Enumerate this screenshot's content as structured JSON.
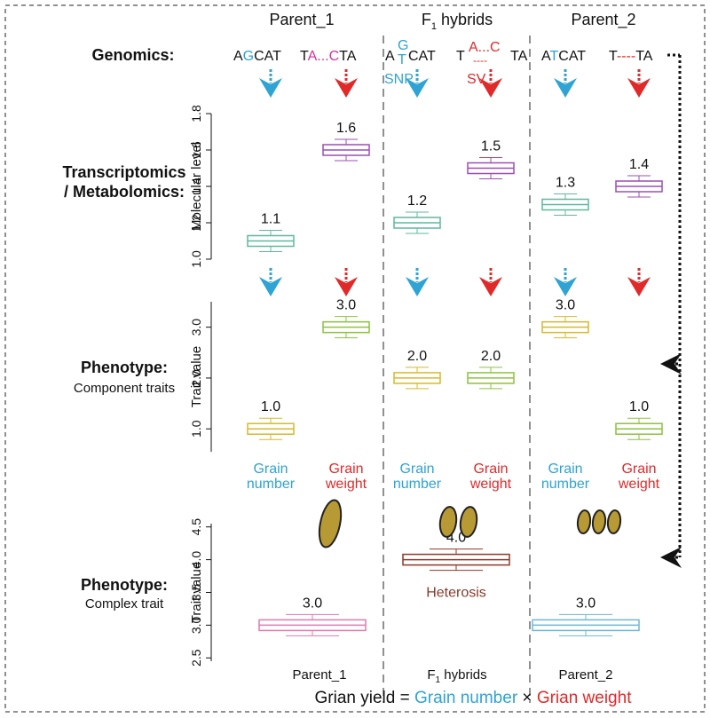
{
  "columns": {
    "p1": "Parent_1",
    "f1": {
      "main": "F",
      "sub": "1",
      "rest": " hybrids"
    },
    "p2": "Parent_2"
  },
  "genomics": {
    "label": "Genomics:",
    "p1_a": [
      "A",
      "G",
      "CAT"
    ],
    "p1_b": [
      "T",
      "A...C",
      "TA"
    ],
    "f1_a": {
      "base": "A",
      "top": "G",
      "bottom": "T",
      "rest": "CAT",
      "note": "SNP"
    },
    "f1_b": {
      "base": "T",
      "top": "A...C",
      "bottom": "----",
      "rest": "TA",
      "note": "SV"
    },
    "p2_a": [
      "A",
      "T",
      "CAT"
    ],
    "p2_b": [
      "T",
      "----",
      "TA"
    ]
  },
  "molecular": {
    "label": [
      "Transcriptomics",
      "/ Metabolomics:"
    ],
    "axis_label": "Molecular level",
    "ylim": [
      1.0,
      1.8
    ],
    "yticks": [
      {
        "value": 1.0,
        "label": "1.0"
      },
      1.2,
      1.4,
      1.6,
      1.8
    ],
    "values": [
      1.1,
      1.6,
      1.2,
      1.5,
      1.3,
      1.4
    ],
    "colors": [
      "#5fb89e",
      "#9b4fb5",
      "#5fb89e",
      "#9b4fb5",
      "#5fb89e",
      "#9b4fb5"
    ]
  },
  "component": {
    "label": [
      "Phenotype:",
      "Component traits"
    ],
    "axis_label": "Trait value",
    "ylim": [
      0.55,
      3.5
    ],
    "yticks": [
      {
        "value": 1.0,
        "label": "1.0"
      },
      {
        "value": 2.0,
        "label": "2.0"
      },
      {
        "value": 3.0,
        "label": "3.0"
      }
    ],
    "values": [
      1.0,
      3.0,
      2.0,
      2.0,
      3.0,
      1.0
    ],
    "value_labels": [
      "1.0",
      "3.0",
      "2.0",
      "2.0",
      "3.0",
      "1.0"
    ],
    "colors": [
      "#d6b92c",
      "#8cc23f",
      "#d6b92c",
      "#8cc23f",
      "#d6b92c",
      "#8cc23f"
    ]
  },
  "traits": {
    "number": [
      "Grain",
      "number"
    ],
    "weight": [
      "Grain",
      "weight"
    ]
  },
  "complex": {
    "label": [
      "Phenotype:",
      "Complex trait"
    ],
    "axis_label": "Trait value",
    "ylim": [
      2.45,
      4.55
    ],
    "yticks": [
      2.5,
      {
        "value": 3.0,
        "label": "3.0"
      },
      3.5,
      {
        "value": 4.0,
        "label": "4.0"
      },
      4.5
    ],
    "values": [
      3.0,
      4.0,
      3.0
    ],
    "value_labels": [
      "3.0",
      "4.0",
      "3.0"
    ],
    "colors": [
      "#e07ab0",
      "#8b3a2a",
      "#6cb8d8"
    ],
    "annotation": "Heterosis"
  },
  "formula": [
    "Grian yield = ",
    "Grain number",
    " × ",
    "Grian weight"
  ]
}
